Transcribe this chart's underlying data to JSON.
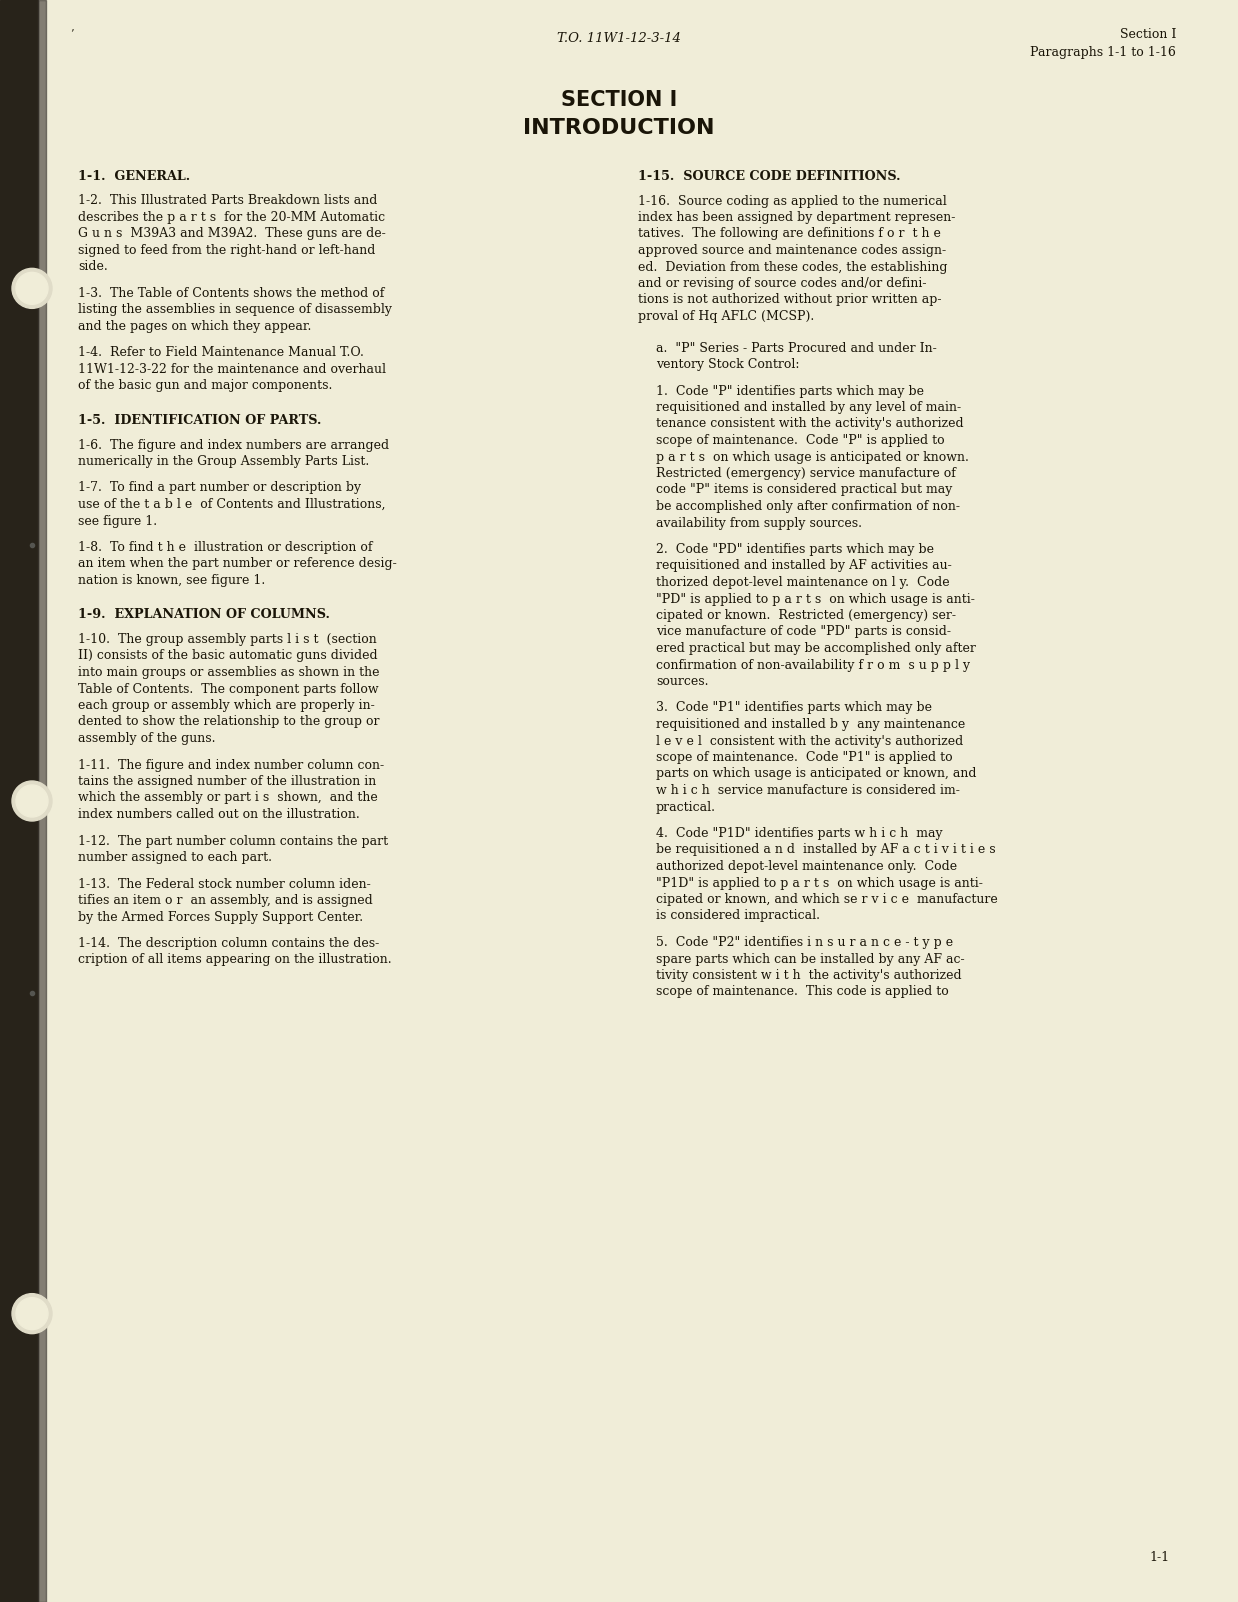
{
  "bg_color": "#f0edd8",
  "text_color": "#1a1508",
  "binding_color": "#2a2520",
  "header_to": "T.O. 11W1-12-3-14",
  "header_section": "Section I",
  "header_para": "Paragraphs 1-1 to 1-16",
  "title1": "SECTION I",
  "title2": "INTRODUCTION",
  "footer_text": "1-1",
  "apostrophe": "’",
  "left_col_items": [
    {
      "type": "heading",
      "text": "1-1.  GENERAL."
    },
    {
      "type": "body",
      "indent": 0,
      "lines": [
        "1-2.  This Illustrated Parts Breakdown lists and",
        "describes the p a r t s  for the 20-MM Automatic",
        "G u n s  M39A3 and M39A2.  These guns are de-",
        "signed to feed from the right-hand or left-hand",
        "side."
      ]
    },
    {
      "type": "body",
      "indent": 0,
      "lines": [
        "1-3.  The Table of Contents shows the method of",
        "listing the assemblies in sequence of disassembly",
        "and the pages on which they appear."
      ]
    },
    {
      "type": "body",
      "indent": 0,
      "lines": [
        "1-4.  Refer to Field Maintenance Manual T.O.",
        "11W1-12-3-22 for the maintenance and overhaul",
        "of the basic gun and major components."
      ]
    },
    {
      "type": "heading",
      "text": "1-5.  IDENTIFICATION OF PARTS."
    },
    {
      "type": "body",
      "indent": 0,
      "lines": [
        "1-6.  The figure and index numbers are arranged",
        "numerically in the Group Assembly Parts List."
      ]
    },
    {
      "type": "body",
      "indent": 0,
      "lines": [
        "1-7.  To find a part number or description by",
        "use of the t a b l e  of Contents and Illustrations,",
        "see figure 1."
      ]
    },
    {
      "type": "body",
      "indent": 0,
      "lines": [
        "1-8.  To find t h e  illustration or description of",
        "an item when the part number or reference desig-",
        "nation is known, see figure 1."
      ]
    },
    {
      "type": "heading",
      "text": "1-9.  EXPLANATION OF COLUMNS."
    },
    {
      "type": "body",
      "indent": 0,
      "lines": [
        "1-10.  The group assembly parts l i s t  (section",
        "II) consists of the basic automatic guns divided",
        "into main groups or assemblies as shown in the",
        "Table of Contents.  The component parts follow",
        "each group or assembly which are properly in-",
        "dented to show the relationship to the group or",
        "assembly of the guns."
      ]
    },
    {
      "type": "body",
      "indent": 0,
      "lines": [
        "1-11.  The figure and index number column con-",
        "tains the assigned number of the illustration in",
        "which the assembly or part i s  shown,  and the",
        "index numbers called out on the illustration."
      ]
    },
    {
      "type": "body",
      "indent": 0,
      "lines": [
        "1-12.  The part number column contains the part",
        "number assigned to each part."
      ]
    },
    {
      "type": "body",
      "indent": 0,
      "lines": [
        "1-13.  The Federal stock number column iden-",
        "tifies an item o r  an assembly, and is assigned",
        "by the Armed Forces Supply Support Center."
      ]
    },
    {
      "type": "body",
      "indent": 0,
      "lines": [
        "1-14.  The description column contains the des-",
        "cription of all items appearing on the illustration."
      ]
    }
  ],
  "right_col_items": [
    {
      "type": "heading",
      "text": "1-15.  SOURCE CODE DEFINITIONS."
    },
    {
      "type": "body",
      "indent": 0,
      "lines": [
        "1-16.  Source coding as applied to the numerical",
        "index has been assigned by department represen-",
        "tatives.  The following are definitions f o r  t h e",
        "approved source and maintenance codes assign-",
        "ed.  Deviation from these codes, the establishing",
        "and or revising of source codes and/or defini-",
        "tions is not authorized without prior written ap-",
        "proval of Hq AFLC (MCSP)."
      ]
    },
    {
      "type": "subhead",
      "lines": [
        "a.  \"P\" Series - Parts Procured and under In-",
        "ventory Stock Control:"
      ]
    },
    {
      "type": "body",
      "indent": 1,
      "lines": [
        "1.  Code \"P\" identifies parts which may be",
        "requisitioned and installed by any level of main-",
        "tenance consistent with the activity's authorized",
        "scope of maintenance.  Code \"P\" is applied to",
        "p a r t s  on which usage is anticipated or known.",
        "Restricted (emergency) service manufacture of",
        "code \"P\" items is considered practical but may",
        "be accomplished only after confirmation of non-",
        "availability from supply sources."
      ]
    },
    {
      "type": "body",
      "indent": 1,
      "lines": [
        "2.  Code \"PD\" identifies parts which may be",
        "requisitioned and installed by AF activities au-",
        "thorized depot-level maintenance on l y.  Code",
        "\"PD\" is applied to p a r t s  on which usage is anti-",
        "cipated or known.  Restricted (emergency) ser-",
        "vice manufacture of code \"PD\" parts is consid-",
        "ered practical but may be accomplished only after",
        "confirmation of non-availability f r o m  s u p p l y",
        "sources."
      ]
    },
    {
      "type": "body",
      "indent": 1,
      "lines": [
        "3.  Code \"P1\" identifies parts which may be",
        "requisitioned and installed b y  any maintenance",
        "l e v e l  consistent with the activity's authorized",
        "scope of maintenance.  Code \"P1\" is applied to",
        "parts on which usage is anticipated or known, and",
        "w h i c h  service manufacture is considered im-",
        "practical."
      ]
    },
    {
      "type": "body",
      "indent": 1,
      "lines": [
        "4.  Code \"P1D\" identifies parts w h i c h  may",
        "be requisitioned a n d  installed by AF a c t i v i t i e s",
        "authorized depot-level maintenance only.  Code",
        "\"P1D\" is applied to p a r t s  on which usage is anti-",
        "cipated or known, and which se r v i c e  manufacture",
        "is considered impractical."
      ]
    },
    {
      "type": "body",
      "indent": 1,
      "lines": [
        "5.  Code \"P2\" identifies i n s u r a n c e - t y p e",
        "spare parts which can be installed by any AF ac-",
        "tivity consistent w i t h  the activity's authorized",
        "scope of maintenance.  This code is applied to"
      ]
    }
  ]
}
